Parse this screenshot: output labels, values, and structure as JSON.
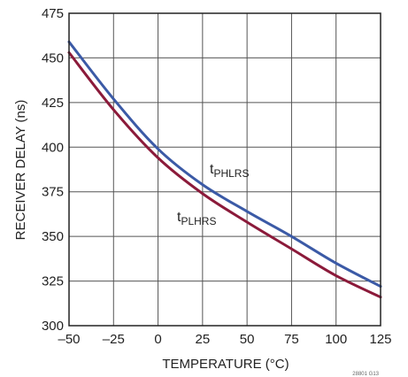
{
  "chart_data": {
    "type": "line",
    "title": "",
    "xlabel": "TEMPERATURE (°C)",
    "ylabel": "RECEIVER DELAY (ns)",
    "xlim": [
      -50,
      125
    ],
    "ylim": [
      300,
      475
    ],
    "x_ticks": [
      "–50",
      "–25",
      "0",
      "25",
      "50",
      "75",
      "100",
      "125"
    ],
    "y_ticks": [
      "300",
      "325",
      "350",
      "375",
      "400",
      "425",
      "450",
      "475"
    ],
    "grid": true,
    "legend": "none",
    "series": [
      {
        "name": "tPHLRS",
        "label_main": "t",
        "label_sub": "PHLRS",
        "color": "#3b5aa6",
        "x": [
          -50,
          -25,
          0,
          25,
          50,
          75,
          100,
          125
        ],
        "values": [
          459,
          427,
          399,
          379,
          364,
          350,
          335,
          322
        ]
      },
      {
        "name": "tPLHRS",
        "label_main": "t",
        "label_sub": "PLHRS",
        "color": "#8b1a3a",
        "x": [
          -50,
          -25,
          0,
          25,
          50,
          75,
          100,
          125
        ],
        "values": [
          453,
          421,
          394,
          374,
          358,
          343,
          328,
          316
        ]
      }
    ],
    "footnote": "28801 G13"
  }
}
